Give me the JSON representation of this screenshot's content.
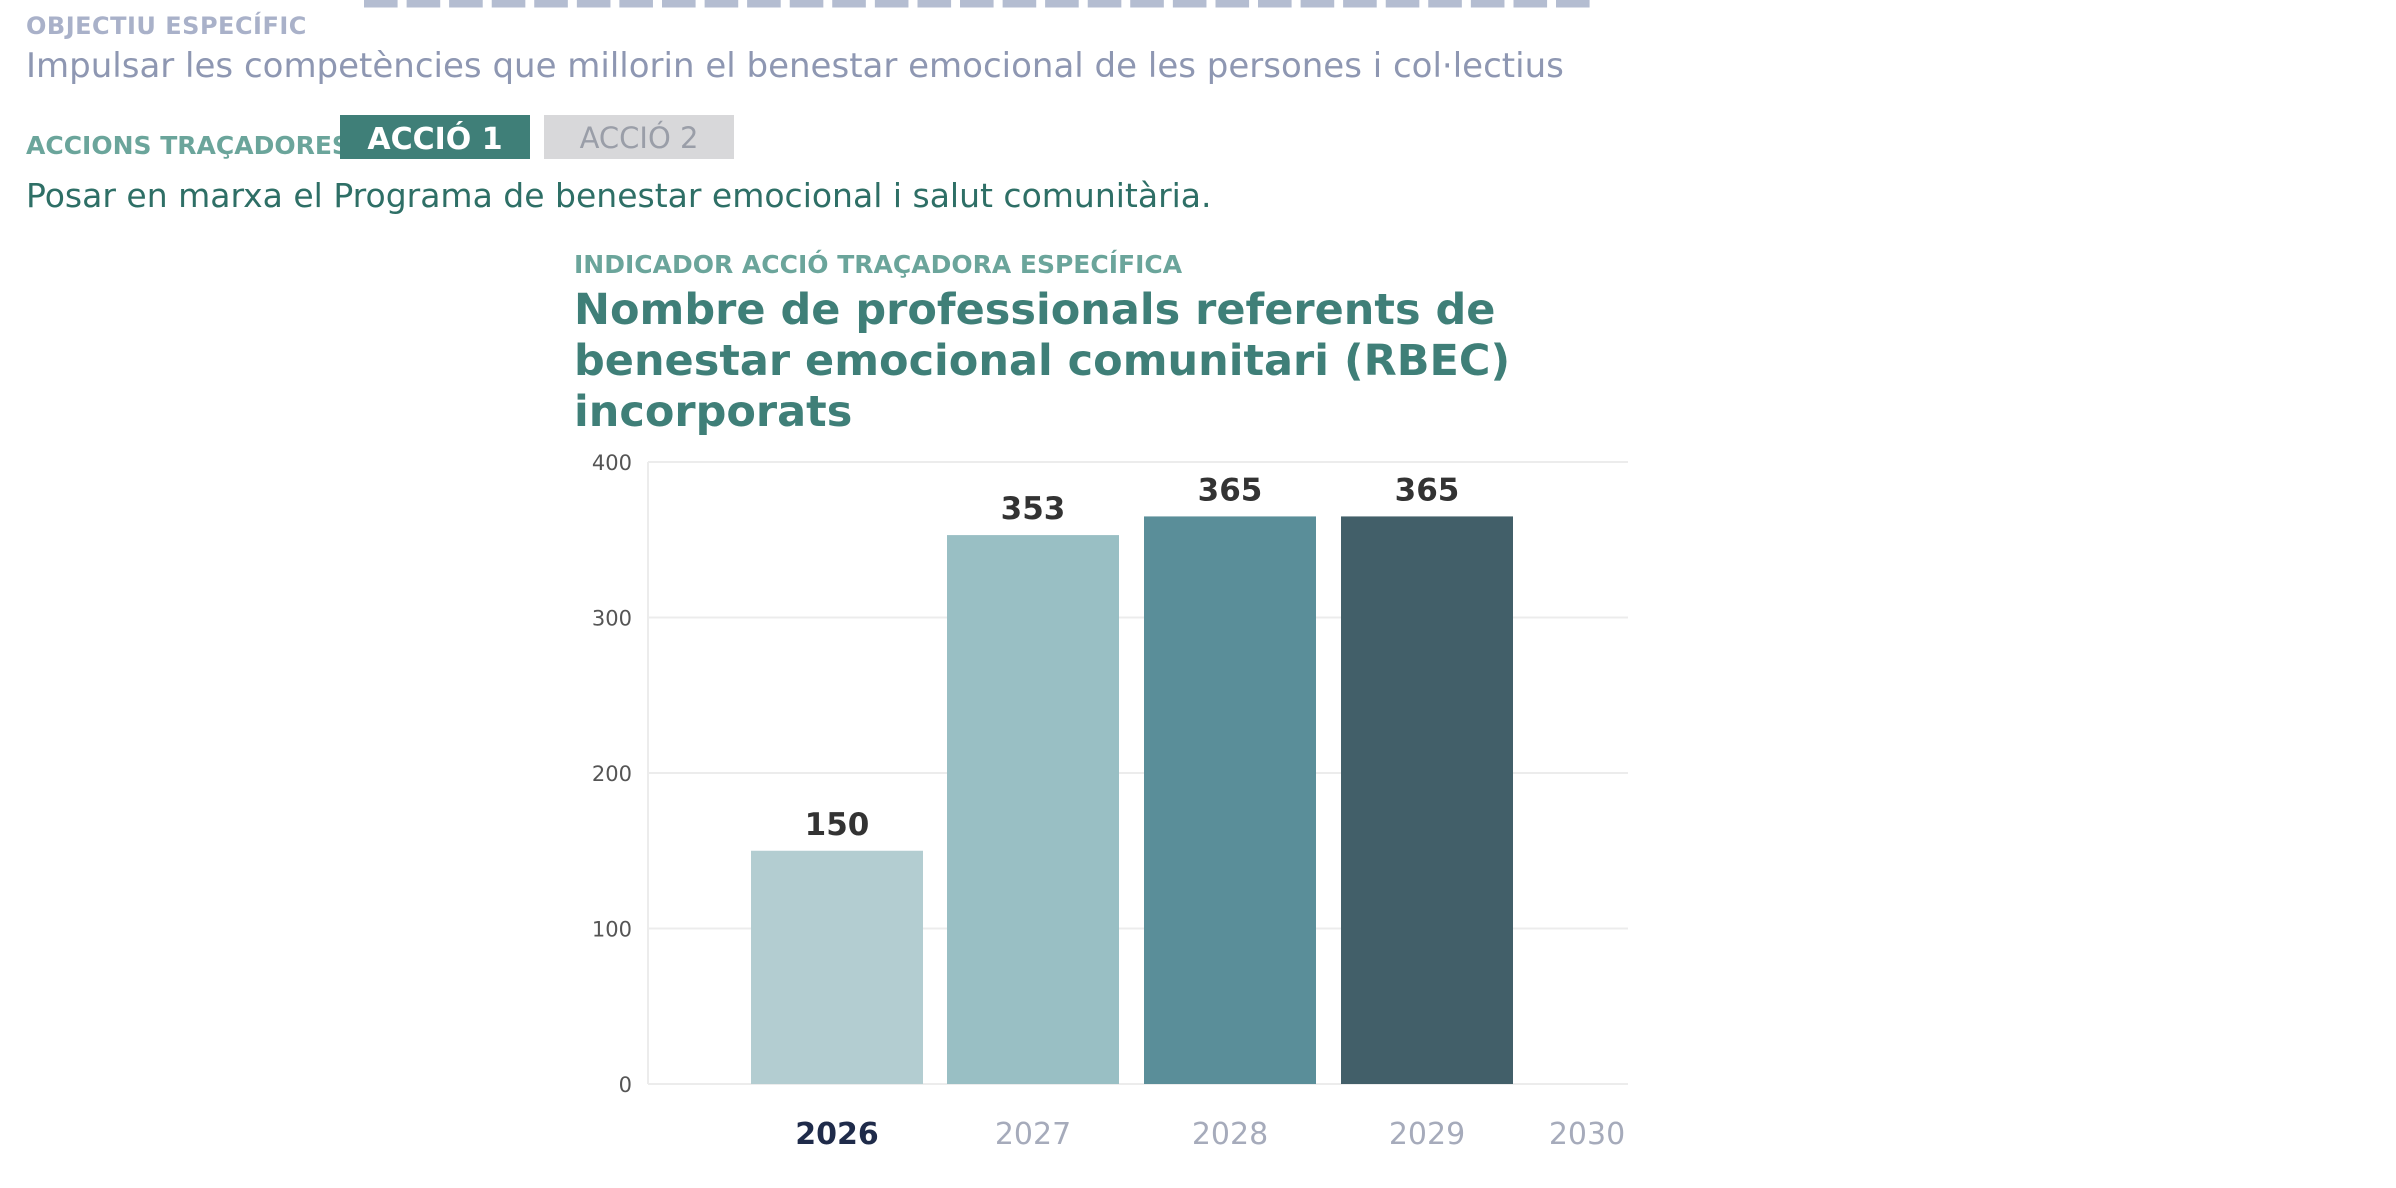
{
  "objective": {
    "label": "OBJECTIU  ESPECÍFIC",
    "text": "Impulsar les competències que millorin el benestar emocional de les persones i col·lectius"
  },
  "actions": {
    "label": "ACCIONS TRAÇADORES",
    "tabs": [
      {
        "label": "ACCIÓ 1",
        "active": true
      },
      {
        "label": "ACCIÓ 2",
        "active": false
      }
    ],
    "description": "Posar en marxa el Programa de benestar emocional i salut comunitària."
  },
  "indicator": {
    "label": "INDICADOR ACCIÓ TRAÇADORA ESPECÍFICA"
  },
  "chart_data": {
    "type": "bar",
    "title": "Nombre de professionals referents de benestar emocional comunitari (RBEC) incorporats",
    "categories": [
      "2026",
      "2027",
      "2028",
      "2029",
      "2030"
    ],
    "values": [
      150,
      353,
      365,
      365,
      null
    ],
    "data_labels": [
      "150",
      "353",
      "365",
      "365",
      ""
    ],
    "highlighted_category": "2026",
    "bar_colors": [
      "#b3cdd1",
      "#99bfc4",
      "#5a8e99",
      "#425f69",
      "#ffffff"
    ],
    "ylim": [
      0,
      400
    ],
    "yticks": [
      "0",
      "100",
      "200",
      "300",
      "400"
    ],
    "grid": true,
    "legend": "none",
    "colors": {
      "label_dark": "#333333",
      "axis_highlight": "#1f2b4a",
      "axis_muted": "#a6abbb",
      "tick": "#555555",
      "grid": "#ececec"
    }
  }
}
